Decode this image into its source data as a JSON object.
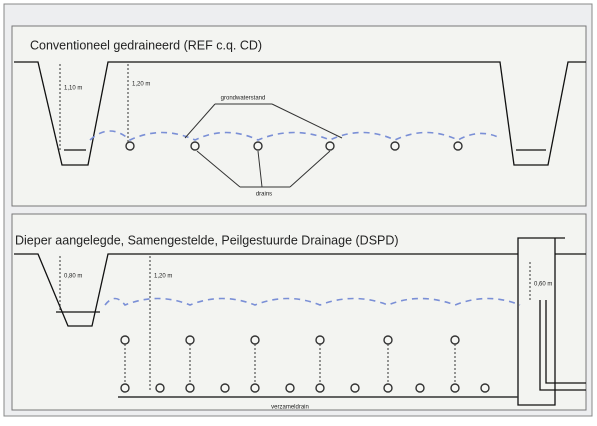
{
  "panels": [
    {
      "title": "Conventioneel gedraineerd (REF c.q. CD)",
      "depth_labels": [
        "1,10 m",
        "1,20 m"
      ],
      "groundwater_label": "grondwaterstand",
      "drains_label": "drains"
    },
    {
      "title": "Dieper aangelegde, Samengestelde, Peilgestuurde Drainage (DSPD)",
      "depth_labels": [
        "0,80 m",
        "1,20 m",
        "0,60 m"
      ],
      "collector_label": "verzameldrain"
    }
  ]
}
